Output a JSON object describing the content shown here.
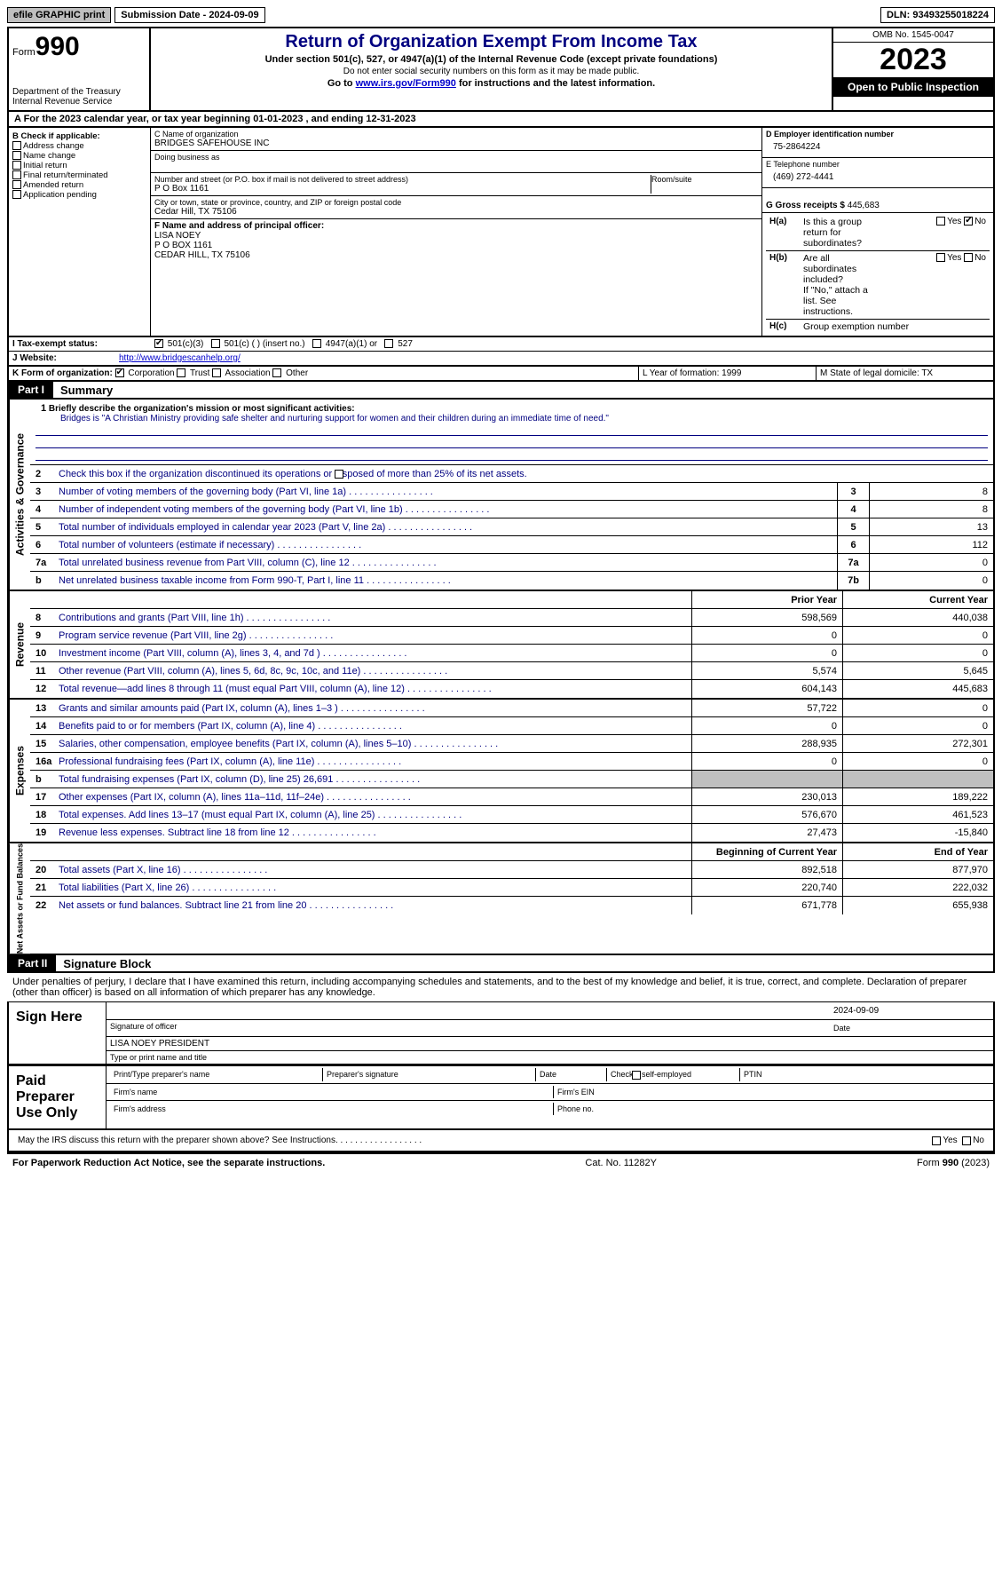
{
  "topbar": {
    "efile": "efile GRAPHIC print",
    "submission": "Submission Date - 2024-09-09",
    "dln": "DLN: 93493255018224"
  },
  "header": {
    "form_label": "Form",
    "form_no": "990",
    "dept": "Department of the Treasury Internal Revenue Service",
    "title": "Return of Organization Exempt From Income Tax",
    "sub1": "Under section 501(c), 527, or 4947(a)(1) of the Internal Revenue Code (except private foundations)",
    "sub2": "Do not enter social security numbers on this form as it may be made public.",
    "sub3_pre": "Go to ",
    "sub3_link": "www.irs.gov/Form990",
    "sub3_post": " for instructions and the latest information.",
    "omb": "OMB No. 1545-0047",
    "year": "2023",
    "inspection": "Open to Public Inspection"
  },
  "section_a": "A For the 2023 calendar year, or tax year beginning 01-01-2023    , and ending 12-31-2023",
  "col_b": {
    "title": "B Check if applicable:",
    "items": [
      "Address change",
      "Name change",
      "Initial return",
      "Final return/terminated",
      "Amended return",
      "Application pending"
    ]
  },
  "col_c": {
    "c_label": "C Name of organization",
    "c_name": "BRIDGES SAFEHOUSE INC",
    "dba_label": "Doing business as",
    "addr_label": "Number and street (or P.O. box if mail is not delivered to street address)",
    "addr": "P O Box 1161",
    "room_label": "Room/suite",
    "city_label": "City or town, state or province, country, and ZIP or foreign postal code",
    "city": "Cedar Hill, TX   75106",
    "f_label": "F Name and address of principal officer:",
    "f_name": "LISA NOEY",
    "f_addr1": "P O BOX 1161",
    "f_addr2": "CEDAR HILL, TX  75106"
  },
  "col_d": {
    "d_label": "D Employer identification number",
    "ein": "75-2864224",
    "e_label": "E Telephone number",
    "phone": "(469) 272-4441",
    "g_label": "G Gross receipts $",
    "g_val": "445,683"
  },
  "row_i": {
    "label": "I   Tax-exempt status:",
    "opt1": "501(c)(3)",
    "opt2": "501(c) (  ) (insert no.)",
    "opt3": "4947(a)(1) or",
    "opt4": "527"
  },
  "row_j": {
    "label": "J   Website:",
    "val": "http://www.bridgescanhelp.org/"
  },
  "row_h": {
    "ha": "Is this a group return for subordinates?",
    "hb": "Are all subordinates included?",
    "hb_note": "If \"No,\" attach a list. See instructions.",
    "hc": "Group exemption number",
    "yes": "Yes",
    "no": "No"
  },
  "row_k": {
    "label": "K Form of organization:",
    "opts": [
      "Corporation",
      "Trust",
      "Association",
      "Other"
    ],
    "l_label": "L Year of formation: 1999",
    "m_label": "M State of legal domicile: TX"
  },
  "part1": {
    "badge": "Part I",
    "title": "Summary"
  },
  "activities": {
    "tab": "Activities & Governance",
    "l1_label": "Briefly describe the organization's mission or most significant activities:",
    "l1_text": "Bridges is \"A Christian Ministry providing safe shelter and nurturing support for women and their children during an immediate time of need.\"",
    "l2": "Check this box      if the organization discontinued its operations or disposed of more than 25% of its net assets.",
    "lines": [
      {
        "n": "3",
        "t": "Number of voting members of the governing body (Part VI, line 1a)",
        "b": "3",
        "v": "8"
      },
      {
        "n": "4",
        "t": "Number of independent voting members of the governing body (Part VI, line 1b)",
        "b": "4",
        "v": "8"
      },
      {
        "n": "5",
        "t": "Total number of individuals employed in calendar year 2023 (Part V, line 2a)",
        "b": "5",
        "v": "13"
      },
      {
        "n": "6",
        "t": "Total number of volunteers (estimate if necessary)",
        "b": "6",
        "v": "112"
      },
      {
        "n": "7a",
        "t": "Total unrelated business revenue from Part VIII, column (C), line 12",
        "b": "7a",
        "v": "0"
      },
      {
        "n": "b",
        "t": "Net unrelated business taxable income from Form 990-T, Part I, line 11",
        "b": "7b",
        "v": "0"
      }
    ]
  },
  "revenue": {
    "tab": "Revenue",
    "head_prior": "Prior Year",
    "head_current": "Current Year",
    "lines": [
      {
        "n": "8",
        "t": "Contributions and grants (Part VIII, line 1h)",
        "p": "598,569",
        "c": "440,038"
      },
      {
        "n": "9",
        "t": "Program service revenue (Part VIII, line 2g)",
        "p": "0",
        "c": "0"
      },
      {
        "n": "10",
        "t": "Investment income (Part VIII, column (A), lines 3, 4, and 7d )",
        "p": "0",
        "c": "0"
      },
      {
        "n": "11",
        "t": "Other revenue (Part VIII, column (A), lines 5, 6d, 8c, 9c, 10c, and 11e)",
        "p": "5,574",
        "c": "5,645"
      },
      {
        "n": "12",
        "t": "Total revenue—add lines 8 through 11 (must equal Part VIII, column (A), line 12)",
        "p": "604,143",
        "c": "445,683"
      }
    ]
  },
  "expenses": {
    "tab": "Expenses",
    "lines": [
      {
        "n": "13",
        "t": "Grants and similar amounts paid (Part IX, column (A), lines 1–3 )",
        "p": "57,722",
        "c": "0"
      },
      {
        "n": "14",
        "t": "Benefits paid to or for members (Part IX, column (A), line 4)",
        "p": "0",
        "c": "0"
      },
      {
        "n": "15",
        "t": "Salaries, other compensation, employee benefits (Part IX, column (A), lines 5–10)",
        "p": "288,935",
        "c": "272,301"
      },
      {
        "n": "16a",
        "t": "Professional fundraising fees (Part IX, column (A), line 11e)",
        "p": "0",
        "c": "0"
      },
      {
        "n": "b",
        "t": "Total fundraising expenses (Part IX, column (D), line 25) 26,691",
        "p": "shaded",
        "c": "shaded"
      },
      {
        "n": "17",
        "t": "Other expenses (Part IX, column (A), lines 11a–11d, 11f–24e)",
        "p": "230,013",
        "c": "189,222"
      },
      {
        "n": "18",
        "t": "Total expenses. Add lines 13–17 (must equal Part IX, column (A), line 25)",
        "p": "576,670",
        "c": "461,523"
      },
      {
        "n": "19",
        "t": "Revenue less expenses. Subtract line 18 from line 12",
        "p": "27,473",
        "c": "-15,840"
      }
    ]
  },
  "netassets": {
    "tab": "Net Assets or Fund Balances",
    "head_begin": "Beginning of Current Year",
    "head_end": "End of Year",
    "lines": [
      {
        "n": "20",
        "t": "Total assets (Part X, line 16)",
        "p": "892,518",
        "c": "877,970"
      },
      {
        "n": "21",
        "t": "Total liabilities (Part X, line 26)",
        "p": "220,740",
        "c": "222,032"
      },
      {
        "n": "22",
        "t": "Net assets or fund balances. Subtract line 21 from line 20",
        "p": "671,778",
        "c": "655,938"
      }
    ]
  },
  "part2": {
    "badge": "Part II",
    "title": "Signature Block"
  },
  "sig": {
    "decl": "Under penalties of perjury, I declare that I have examined this return, including accompanying schedules and statements, and to the best of my knowledge and belief, it is true, correct, and complete. Declaration of preparer (other than officer) is based on all information of which preparer has any knowledge.",
    "sign_here": "Sign Here",
    "sig_officer": "Signature of officer",
    "officer_name": "LISA NOEY PRESIDENT",
    "type_name": "Type or print name and title",
    "date": "Date",
    "sig_date": "2024-09-09",
    "paid": "Paid Preparer Use Only",
    "prep_name": "Print/Type preparer's name",
    "prep_sig": "Preparer's signature",
    "prep_date": "Date",
    "check_self": "Check        if self-employed",
    "ptin": "PTIN",
    "firm_name": "Firm's name",
    "firm_ein": "Firm's EIN",
    "firm_addr": "Firm's address",
    "phone": "Phone no.",
    "may_irs": "May the IRS discuss this return with the preparer shown above? See Instructions."
  },
  "footer": {
    "paperwork": "For Paperwork Reduction Act Notice, see the separate instructions.",
    "cat": "Cat. No. 11282Y",
    "form": "Form 990 (2023)"
  }
}
